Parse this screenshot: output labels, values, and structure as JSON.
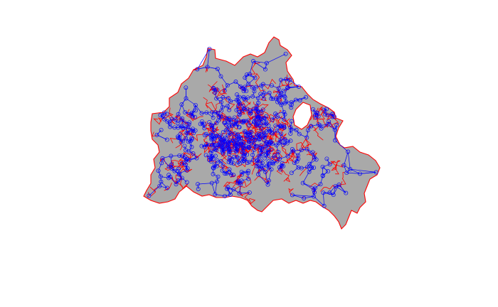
{
  "map": {
    "region_fill": "#a9a9a9",
    "boundary_color": "#ff0000",
    "network_color": "#0000ff",
    "node_marker": "open-circle",
    "background": "#ffffff"
  }
}
